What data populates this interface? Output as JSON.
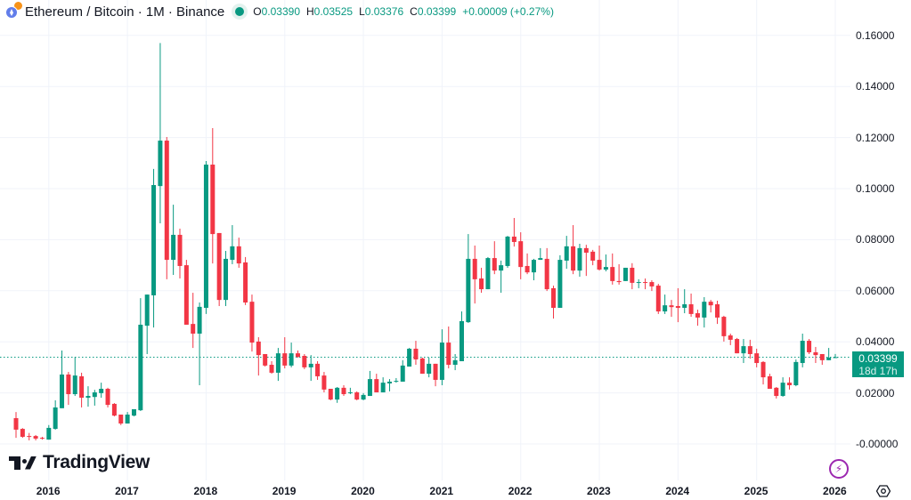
{
  "header": {
    "title": "Ethereum / Bitcoin · 1M · Binance",
    "open_label": "O",
    "open": "0.03390",
    "high_label": "H",
    "high": "0.03525",
    "low_label": "L",
    "low": "0.03376",
    "close_label": "C",
    "close": "0.03399",
    "change": "+0.00009 (+0.27%)"
  },
  "price_tag": {
    "price": "0.03399",
    "countdown": "18d 17h"
  },
  "logo": {
    "text": "TradingView"
  },
  "colors": {
    "up": "#089981",
    "down": "#f23645",
    "grid": "#f0f3fa",
    "purple": "#9c27b0"
  },
  "chart_data": {
    "type": "candlestick",
    "title": "Ethereum / Bitcoin · 1M · Binance",
    "interval": "1M",
    "first_month": "2015-08",
    "last_month": "2026-01",
    "ylim": [
      0,
      0.165
    ],
    "grid": true,
    "y_ticks": [
      {
        "value": 0.16,
        "label": "0.16000"
      },
      {
        "value": 0.14,
        "label": "0.14000"
      },
      {
        "value": 0.12,
        "label": "0.12000"
      },
      {
        "value": 0.1,
        "label": "0.10000"
      },
      {
        "value": 0.08,
        "label": "0.08000"
      },
      {
        "value": 0.06,
        "label": "0.06000"
      },
      {
        "value": 0.04,
        "label": "0.04000"
      },
      {
        "value": 0.02,
        "label": "0.02000"
      },
      {
        "value": 0.0,
        "label": "-0.00000"
      }
    ],
    "x_ticks": [
      "2016",
      "2017",
      "2018",
      "2019",
      "2020",
      "2021",
      "2022",
      "2023",
      "2024",
      "2025",
      "2026"
    ],
    "last_price": 0.03399,
    "ohlc_fields": [
      "open",
      "high",
      "low",
      "close"
    ],
    "ohlc": [
      [
        0.0101,
        0.0125,
        0.0024,
        0.0056
      ],
      [
        0.0059,
        0.0062,
        0.0024,
        0.0028
      ],
      [
        0.0031,
        0.0043,
        0.0014,
        0.0028
      ],
      [
        0.0031,
        0.0035,
        0.0014,
        0.0021
      ],
      [
        0.0024,
        0.0028,
        0.0017,
        0.0021
      ],
      [
        0.0017,
        0.0074,
        0.0017,
        0.0063
      ],
      [
        0.0059,
        0.0171,
        0.0056,
        0.0143
      ],
      [
        0.014,
        0.0366,
        0.014,
        0.0272
      ],
      [
        0.0272,
        0.0282,
        0.0153,
        0.0195
      ],
      [
        0.0195,
        0.0341,
        0.0188,
        0.0268
      ],
      [
        0.0265,
        0.0279,
        0.0143,
        0.0181
      ],
      [
        0.0181,
        0.0226,
        0.0146,
        0.0188
      ],
      [
        0.0184,
        0.0212,
        0.015,
        0.0202
      ],
      [
        0.0199,
        0.024,
        0.0181,
        0.0216
      ],
      [
        0.0216,
        0.022,
        0.0143,
        0.0153
      ],
      [
        0.0157,
        0.016,
        0.0108,
        0.0111
      ],
      [
        0.0115,
        0.0115,
        0.0074,
        0.008
      ],
      [
        0.008,
        0.0125,
        0.008,
        0.0115
      ],
      [
        0.0111,
        0.0136,
        0.0108,
        0.0136
      ],
      [
        0.0132,
        0.0571,
        0.0129,
        0.0467
      ],
      [
        0.0463,
        0.0585,
        0.0352,
        0.0585
      ],
      [
        0.0582,
        0.1077,
        0.0456,
        0.1014
      ],
      [
        0.101,
        0.157,
        0.0864,
        0.1188
      ],
      [
        0.1188,
        0.1202,
        0.0645,
        0.0721
      ],
      [
        0.0721,
        0.0937,
        0.0662,
        0.0819
      ],
      [
        0.0819,
        0.0843,
        0.0648,
        0.0697
      ],
      [
        0.07,
        0.0721,
        0.0467,
        0.0467
      ],
      [
        0.047,
        0.0592,
        0.0376,
        0.0432
      ],
      [
        0.0432,
        0.0554,
        0.023,
        0.0537
      ],
      [
        0.0533,
        0.1108,
        0.0509,
        0.1094
      ],
      [
        0.1094,
        0.1237,
        0.0707,
        0.0822
      ],
      [
        0.0826,
        0.0826,
        0.054,
        0.0564
      ],
      [
        0.0564,
        0.0756,
        0.054,
        0.0725
      ],
      [
        0.0721,
        0.0857,
        0.0704,
        0.0774
      ],
      [
        0.0774,
        0.0808,
        0.069,
        0.0707
      ],
      [
        0.0711,
        0.0732,
        0.0544,
        0.0554
      ],
      [
        0.0557,
        0.0585,
        0.0362,
        0.0397
      ],
      [
        0.0401,
        0.0418,
        0.0268,
        0.0348
      ],
      [
        0.0352,
        0.0352,
        0.0303,
        0.0307
      ],
      [
        0.031,
        0.0324,
        0.0275,
        0.0279
      ],
      [
        0.0279,
        0.0376,
        0.0247,
        0.0355
      ],
      [
        0.0355,
        0.0418,
        0.0296,
        0.0307
      ],
      [
        0.0307,
        0.0397,
        0.03,
        0.0355
      ],
      [
        0.0355,
        0.0366,
        0.0338,
        0.0341
      ],
      [
        0.0345,
        0.0352,
        0.0293,
        0.03
      ],
      [
        0.03,
        0.0348,
        0.0247,
        0.0314
      ],
      [
        0.0314,
        0.0324,
        0.0251,
        0.0265
      ],
      [
        0.0268,
        0.0282,
        0.0202,
        0.0213
      ],
      [
        0.0216,
        0.0216,
        0.0171,
        0.0174
      ],
      [
        0.0174,
        0.0223,
        0.0161,
        0.022
      ],
      [
        0.022,
        0.023,
        0.0188,
        0.0195
      ],
      [
        0.0199,
        0.022,
        0.0195,
        0.0202
      ],
      [
        0.0202,
        0.0206,
        0.0171,
        0.0174
      ],
      [
        0.0174,
        0.0199,
        0.0171,
        0.0192
      ],
      [
        0.0188,
        0.0286,
        0.0188,
        0.0254
      ],
      [
        0.0254,
        0.0275,
        0.0202,
        0.0202
      ],
      [
        0.0202,
        0.0261,
        0.0202,
        0.024
      ],
      [
        0.0237,
        0.0254,
        0.0206,
        0.0244
      ],
      [
        0.0244,
        0.0258,
        0.024,
        0.0247
      ],
      [
        0.0244,
        0.0328,
        0.0244,
        0.0307
      ],
      [
        0.0303,
        0.0376,
        0.0303,
        0.0373
      ],
      [
        0.0373,
        0.0404,
        0.031,
        0.0331
      ],
      [
        0.0335,
        0.0338,
        0.0275,
        0.0275
      ],
      [
        0.0275,
        0.0338,
        0.0261,
        0.0314
      ],
      [
        0.0314,
        0.0314,
        0.0226,
        0.0251
      ],
      [
        0.0251,
        0.0449,
        0.023,
        0.0397
      ],
      [
        0.0397,
        0.046,
        0.0296,
        0.031
      ],
      [
        0.031,
        0.0352,
        0.0289,
        0.0328
      ],
      [
        0.0324,
        0.0519,
        0.0324,
        0.0481
      ],
      [
        0.0477,
        0.0822,
        0.0474,
        0.0725
      ],
      [
        0.0725,
        0.0777,
        0.055,
        0.0645
      ],
      [
        0.0648,
        0.069,
        0.0592,
        0.0606
      ],
      [
        0.0606,
        0.0732,
        0.0606,
        0.0728
      ],
      [
        0.0728,
        0.0794,
        0.0665,
        0.0679
      ],
      [
        0.0679,
        0.0718,
        0.0592,
        0.07
      ],
      [
        0.0697,
        0.0815,
        0.069,
        0.0812
      ],
      [
        0.0812,
        0.0885,
        0.0773,
        0.0791
      ],
      [
        0.0794,
        0.0829,
        0.0645,
        0.0693
      ],
      [
        0.0697,
        0.0746,
        0.0665,
        0.0672
      ],
      [
        0.0672,
        0.0725,
        0.0641,
        0.0721
      ],
      [
        0.0721,
        0.0767,
        0.0721,
        0.0728
      ],
      [
        0.0725,
        0.0767,
        0.0599,
        0.0606
      ],
      [
        0.061,
        0.062,
        0.0491,
        0.0533
      ],
      [
        0.0533,
        0.0739,
        0.0533,
        0.0721
      ],
      [
        0.0718,
        0.0815,
        0.0686,
        0.0774
      ],
      [
        0.0774,
        0.0857,
        0.0665,
        0.0679
      ],
      [
        0.0679,
        0.0784,
        0.0655,
        0.0767
      ],
      [
        0.0767,
        0.078,
        0.0658,
        0.0749
      ],
      [
        0.0753,
        0.076,
        0.07,
        0.0718
      ],
      [
        0.0721,
        0.0777,
        0.0679,
        0.0683
      ],
      [
        0.0683,
        0.0742,
        0.0676,
        0.0693
      ],
      [
        0.0693,
        0.0746,
        0.0624,
        0.0638
      ],
      [
        0.0638,
        0.0704,
        0.0624,
        0.0634
      ],
      [
        0.0638,
        0.069,
        0.0638,
        0.069
      ],
      [
        0.069,
        0.0708,
        0.0606,
        0.0631
      ],
      [
        0.0631,
        0.0645,
        0.061,
        0.0634
      ],
      [
        0.0634,
        0.0648,
        0.0606,
        0.0631
      ],
      [
        0.0634,
        0.0641,
        0.0599,
        0.0617
      ],
      [
        0.062,
        0.0627,
        0.0509,
        0.0519
      ],
      [
        0.0519,
        0.0585,
        0.0509,
        0.0543
      ],
      [
        0.0543,
        0.0564,
        0.0498,
        0.0536
      ],
      [
        0.054,
        0.061,
        0.0477,
        0.0533
      ],
      [
        0.0533,
        0.0606,
        0.0512,
        0.0547
      ],
      [
        0.0547,
        0.0589,
        0.0498,
        0.0509
      ],
      [
        0.0512,
        0.0526,
        0.0463,
        0.0495
      ],
      [
        0.0495,
        0.0575,
        0.0456,
        0.0557
      ],
      [
        0.0557,
        0.0564,
        0.0515,
        0.0543
      ],
      [
        0.0547,
        0.0561,
        0.047,
        0.0495
      ],
      [
        0.0498,
        0.0502,
        0.0401,
        0.0422
      ],
      [
        0.0425,
        0.0432,
        0.0387,
        0.0408
      ],
      [
        0.0411,
        0.0415,
        0.0355,
        0.0355
      ],
      [
        0.0355,
        0.0411,
        0.0317,
        0.0383
      ],
      [
        0.0383,
        0.0408,
        0.0334,
        0.0352
      ],
      [
        0.0355,
        0.0373,
        0.03,
        0.0317
      ],
      [
        0.0321,
        0.0324,
        0.0233,
        0.0261
      ],
      [
        0.0265,
        0.0275,
        0.0216,
        0.0216
      ],
      [
        0.022,
        0.0223,
        0.0178,
        0.0188
      ],
      [
        0.0188,
        0.0261,
        0.0185,
        0.024
      ],
      [
        0.024,
        0.0261,
        0.0213,
        0.023
      ],
      [
        0.023,
        0.0331,
        0.0226,
        0.0321
      ],
      [
        0.0317,
        0.0432,
        0.03,
        0.0404
      ],
      [
        0.0404,
        0.0411,
        0.0352,
        0.0359
      ],
      [
        0.0359,
        0.038,
        0.0317,
        0.0348
      ],
      [
        0.0352,
        0.0352,
        0.031,
        0.0328
      ],
      [
        0.0328,
        0.0376,
        0.0328,
        0.0338
      ],
      [
        0.0339,
        0.03525,
        0.03376,
        0.03399
      ]
    ]
  }
}
